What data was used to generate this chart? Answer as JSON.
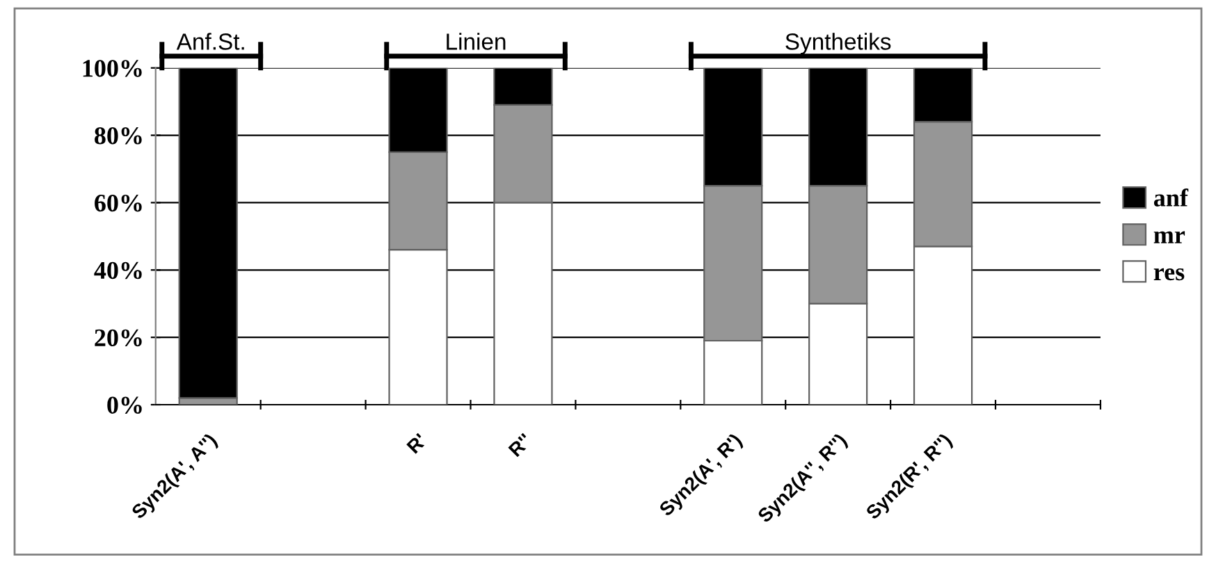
{
  "chart_data": {
    "type": "bar",
    "stacked": true,
    "categories": [
      "Syn2(A', A'')",
      null,
      "R'",
      "R''",
      null,
      "Syn2(A', R')",
      "Syn2(A'', R'')",
      "Syn2(R', R'')",
      null
    ],
    "series": [
      {
        "name": "res",
        "color": "#ffffff",
        "values": [
          null,
          null,
          46,
          60,
          null,
          19,
          30,
          47,
          null
        ]
      },
      {
        "name": "mr",
        "color": "#969696",
        "values": [
          2,
          null,
          29,
          29,
          null,
          46,
          35,
          37,
          null
        ]
      },
      {
        "name": "anf",
        "color": "#000000",
        "values": [
          98,
          null,
          25,
          11,
          null,
          35,
          35,
          16,
          null
        ]
      }
    ],
    "ylim": [
      0,
      100
    ],
    "yticks": [
      {
        "value": 0,
        "label": "0%"
      },
      {
        "value": 20,
        "label": "20%"
      },
      {
        "value": 40,
        "label": "40%"
      },
      {
        "value": 60,
        "label": "60%"
      },
      {
        "value": 80,
        "label": "80%"
      },
      {
        "value": 100,
        "label": "100%"
      }
    ],
    "grid": "y",
    "legend": "right",
    "annotations": [
      "Anf.St.",
      "Linien",
      "Synthetiks"
    ]
  }
}
